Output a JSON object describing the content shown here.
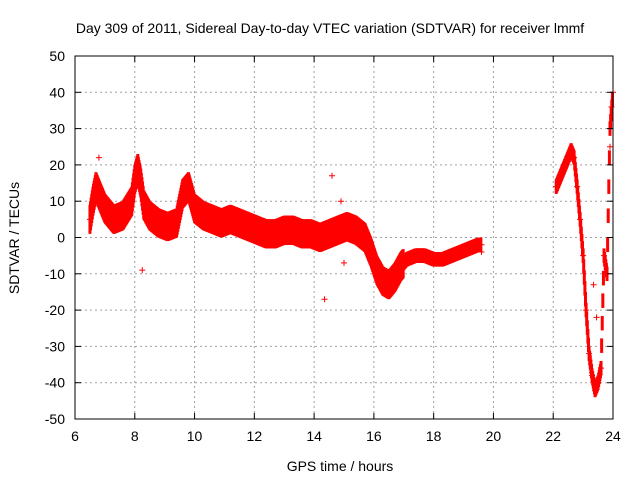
{
  "chart_data": {
    "type": "scatter",
    "title": "Day 309 of 2011, Sidereal Day-to-day VTEC variation (SDTVAR) for receiver lmmf",
    "xlabel": "GPS time / hours",
    "ylabel": "SDTVAR / TECUs",
    "xlim": [
      6,
      24
    ],
    "ylim": [
      -50,
      50
    ],
    "x_ticks": [
      6,
      8,
      10,
      12,
      14,
      16,
      18,
      20,
      22,
      24
    ],
    "y_ticks": [
      -50,
      -40,
      -30,
      -20,
      -10,
      0,
      10,
      20,
      30,
      40,
      50
    ],
    "grid": true,
    "marker": "+",
    "color": "#ff0000",
    "series": [
      {
        "name": "SDTVAR",
        "x": [
          6.5,
          6.6,
          6.7,
          6.8,
          7.0,
          7.3,
          7.6,
          7.9,
          8.0,
          8.1,
          8.2,
          8.3,
          8.5,
          8.8,
          9.1,
          9.4,
          9.6,
          9.8,
          10.0,
          10.3,
          10.6,
          10.9,
          11.2,
          11.5,
          11.8,
          12.1,
          12.4,
          12.7,
          13.0,
          13.3,
          13.6,
          13.9,
          14.2,
          14.5,
          14.8,
          15.1,
          15.4,
          15.7,
          15.9,
          16.1,
          16.3,
          16.5,
          16.7,
          16.9,
          17.1,
          17.4,
          17.7,
          18.0,
          18.3,
          18.6,
          18.9,
          19.2,
          19.5,
          19.6,
          22.1,
          22.3,
          22.5,
          22.6,
          22.7,
          22.8,
          22.9,
          23.0,
          23.1,
          23.2,
          23.3,
          23.4,
          23.5,
          23.6,
          23.7,
          23.8,
          23.9,
          24.0
        ],
        "y": [
          5,
          10,
          14,
          12,
          8,
          5,
          6,
          10,
          16,
          19,
          15,
          9,
          6,
          4,
          3,
          4,
          12,
          14,
          8,
          6,
          5,
          4,
          5,
          4,
          3,
          2,
          1,
          1,
          2,
          2,
          1,
          1,
          0,
          1,
          2,
          3,
          2,
          0,
          -4,
          -9,
          -12,
          -13,
          -11,
          -8,
          -6,
          -5,
          -5,
          -6,
          -6,
          -5,
          -4,
          -3,
          -2,
          -2,
          14,
          18,
          22,
          24,
          22,
          14,
          5,
          -5,
          -20,
          -32,
          -38,
          -42,
          -40,
          -36,
          -5,
          -10,
          30,
          40
        ]
      }
    ],
    "outliers": {
      "x": [
        6.8,
        8.25,
        14.35,
        14.6,
        14.9,
        15.0,
        19.6,
        23.35,
        23.45,
        23.9,
        23.95
      ],
      "y": [
        22,
        -9,
        -17,
        17,
        10,
        -7,
        -4,
        -13,
        -22,
        25,
        36
      ]
    }
  }
}
